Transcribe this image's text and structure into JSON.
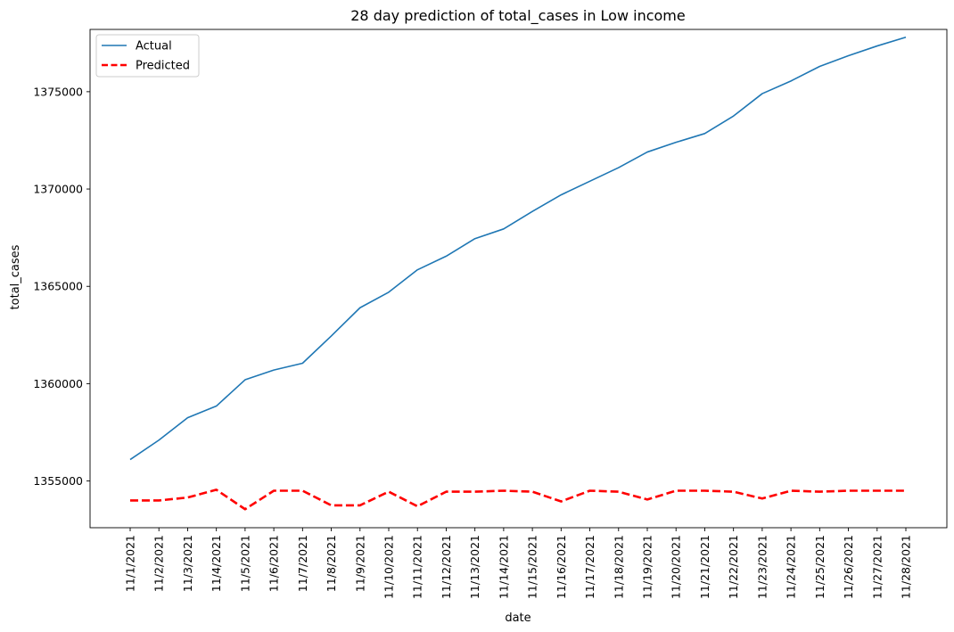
{
  "chart_data": {
    "type": "line",
    "title": "28 day prediction of total_cases in Low income",
    "xlabel": "date",
    "ylabel": "total_cases",
    "categories": [
      "11/1/2021",
      "11/2/2021",
      "11/3/2021",
      "11/4/2021",
      "11/5/2021",
      "11/6/2021",
      "11/7/2021",
      "11/8/2021",
      "11/9/2021",
      "11/10/2021",
      "11/11/2021",
      "11/12/2021",
      "11/13/2021",
      "11/14/2021",
      "11/15/2021",
      "11/16/2021",
      "11/17/2021",
      "11/18/2021",
      "11/19/2021",
      "11/20/2021",
      "11/21/2021",
      "11/22/2021",
      "11/23/2021",
      "11/24/2021",
      "11/25/2021",
      "11/26/2021",
      "11/27/2021",
      "11/28/2021"
    ],
    "yticks": [
      1355000,
      1360000,
      1365000,
      1370000,
      1375000
    ],
    "ylim": [
      1352600,
      1378200
    ],
    "grid": false,
    "legend_position": "top-left",
    "series": [
      {
        "name": "Actual",
        "color": "#1f77b4",
        "style": "solid",
        "values": [
          1356100,
          1357100,
          1358250,
          1358850,
          1360200,
          1360700,
          1361050,
          1362450,
          1363900,
          1364700,
          1365850,
          1366550,
          1367450,
          1367950,
          1368850,
          1369700,
          1370400,
          1371100,
          1371900,
          1372400,
          1372850,
          1373750,
          1374900,
          1375550,
          1376300,
          1376850,
          1377350,
          1377800
        ]
      },
      {
        "name": "Predicted",
        "color": "#ff0000",
        "style": "dashed",
        "values": [
          1354000,
          1354000,
          1354150,
          1354550,
          1353550,
          1354500,
          1354500,
          1353750,
          1353750,
          1354450,
          1353700,
          1354450,
          1354450,
          1354500,
          1354450,
          1353950,
          1354500,
          1354450,
          1354050,
          1354500,
          1354500,
          1354450,
          1354100,
          1354500,
          1354450,
          1354500,
          1354500,
          1354500
        ]
      }
    ]
  }
}
